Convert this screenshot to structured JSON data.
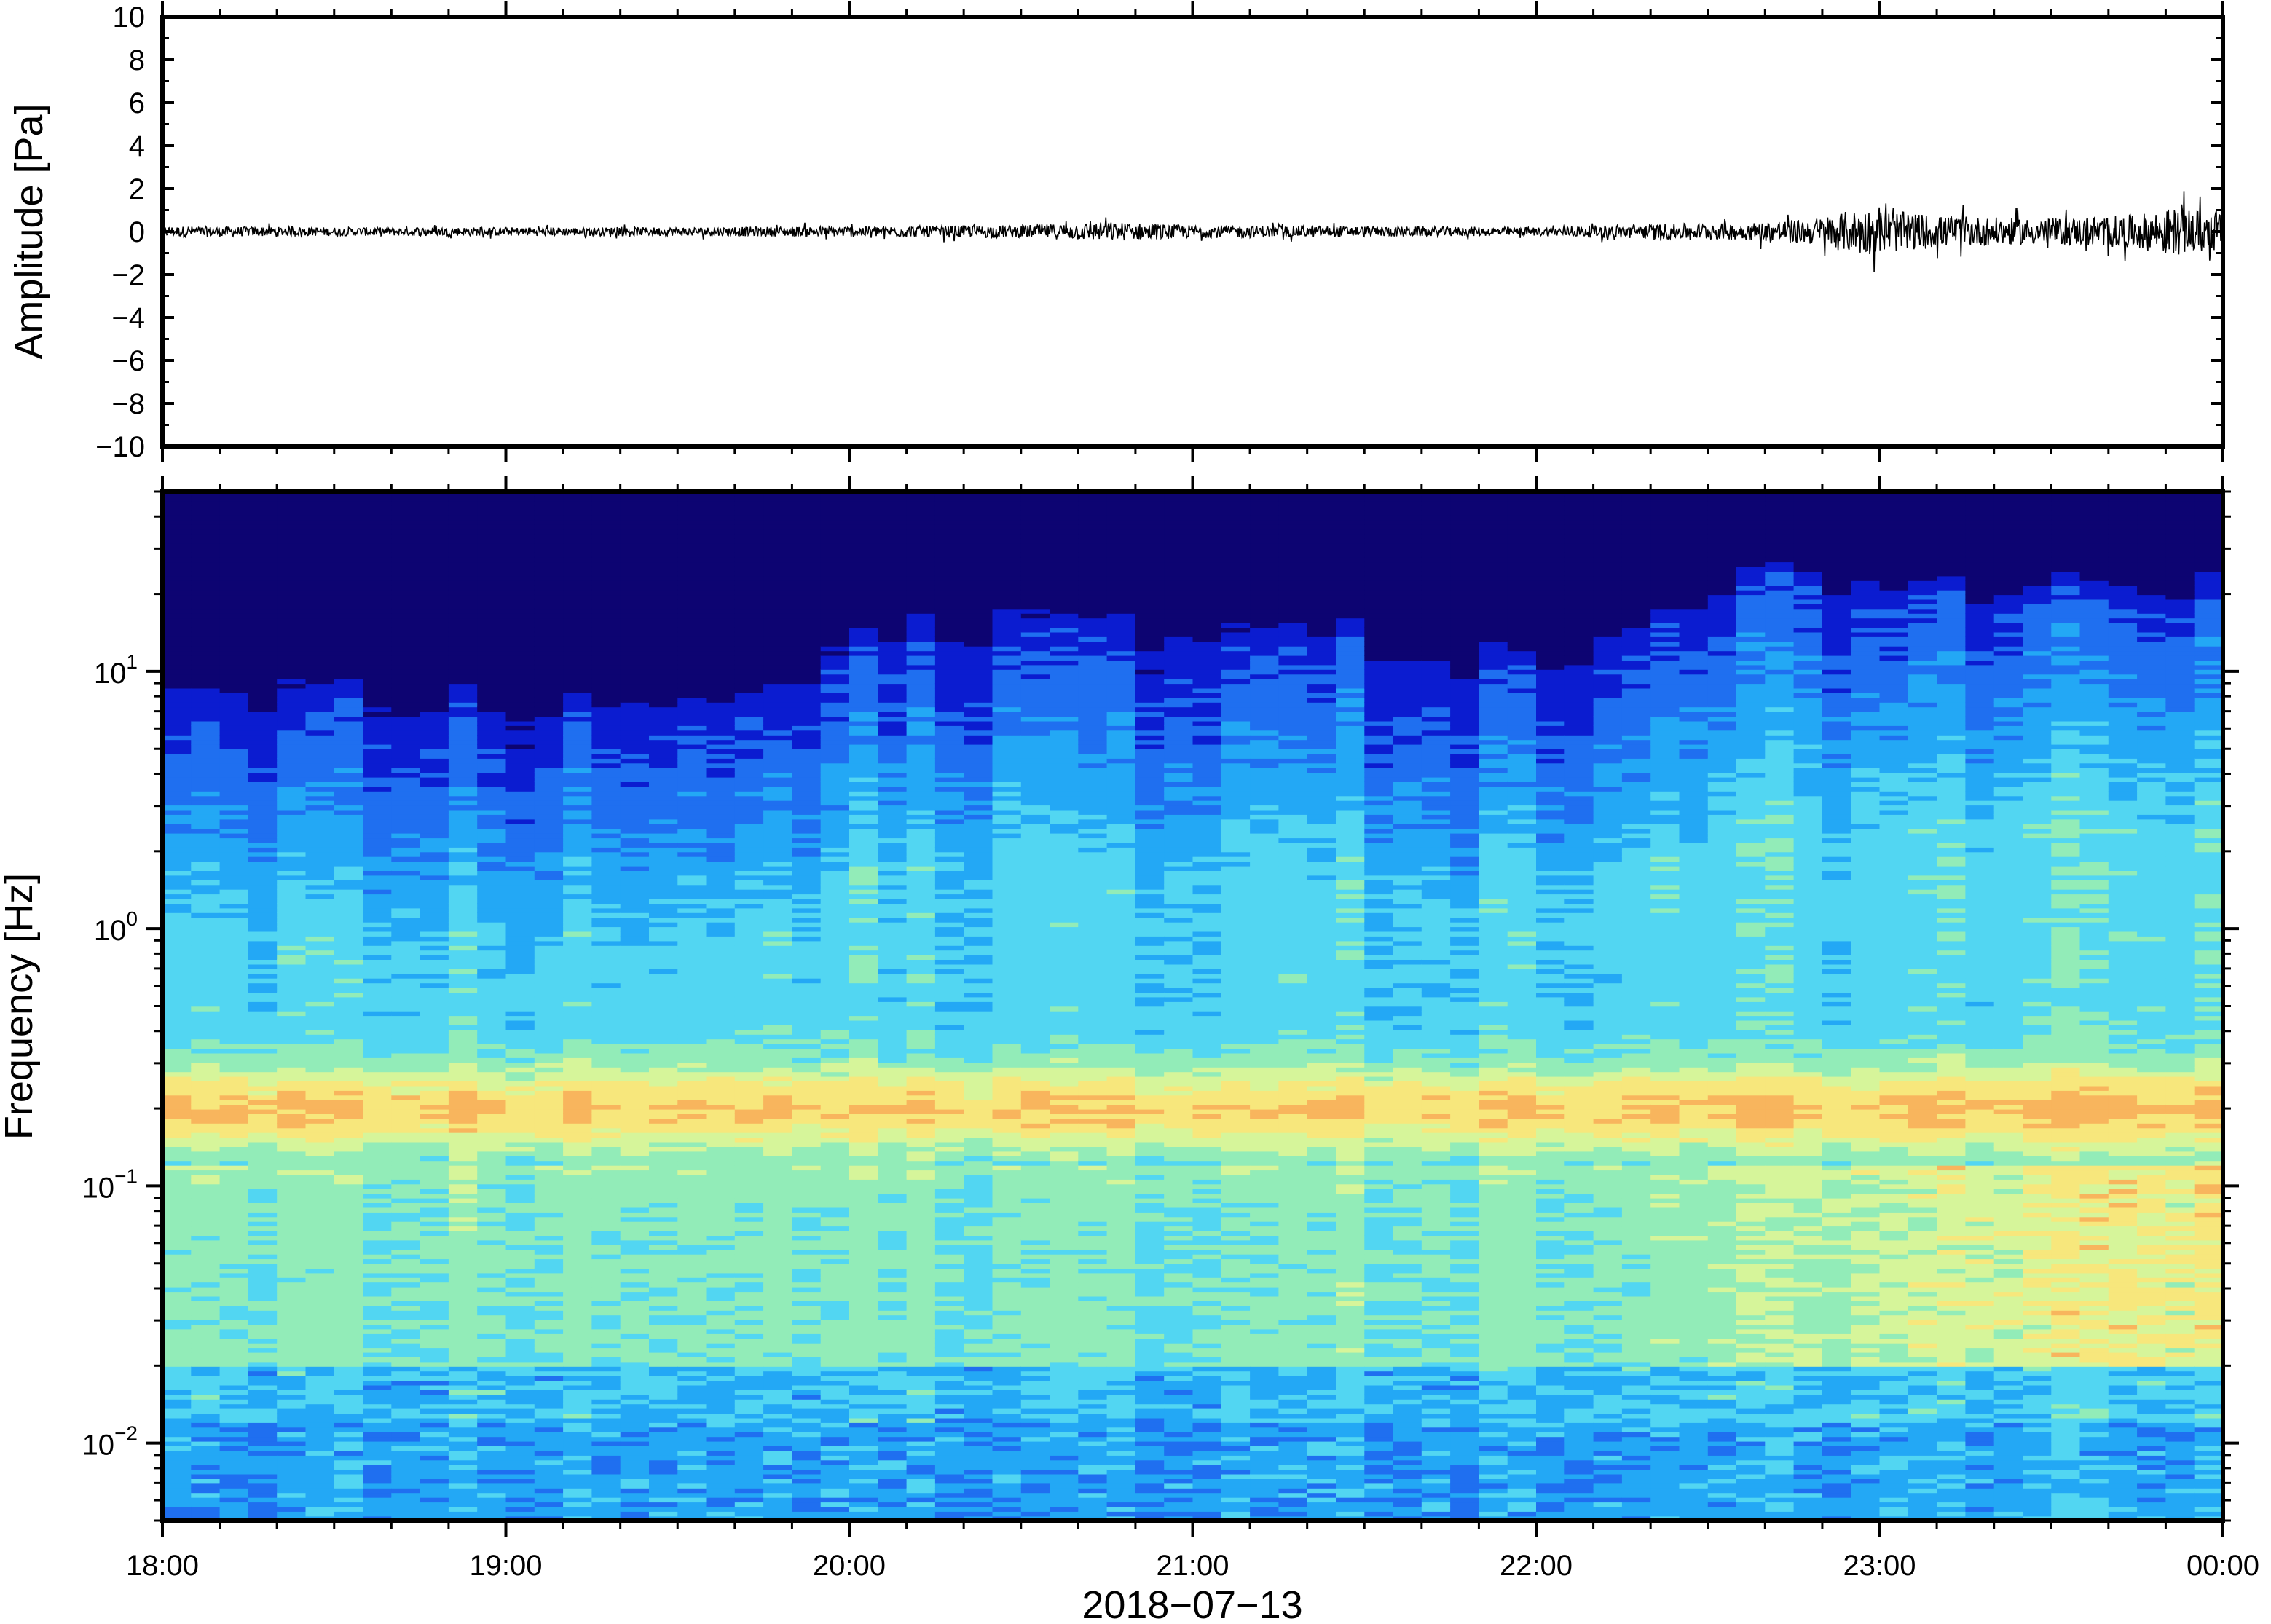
{
  "chart_data": [
    {
      "type": "line",
      "panel": "waveform",
      "ylabel": "Amplitude [Pa]",
      "ylim": [
        -10,
        10
      ],
      "yticks": [
        "10",
        "8",
        "6",
        "4",
        "2",
        "0",
        "−2",
        "−4",
        "−6",
        "−8",
        "−10"
      ],
      "ytick_values": [
        10,
        8,
        6,
        4,
        2,
        0,
        -2,
        -4,
        -6,
        -8,
        -10
      ],
      "x_range_hours": [
        18,
        24
      ],
      "series": [
        {
          "color": "#000000",
          "envelope_time_hours": [
            18.0,
            18.5,
            19.0,
            19.5,
            20.0,
            20.5,
            20.75,
            21.0,
            21.5,
            22.0,
            22.3,
            22.6,
            22.8,
            22.95,
            23.2,
            23.5,
            23.75,
            23.85,
            24.0
          ],
          "envelope_amplitude_pa": [
            0.25,
            0.2,
            0.2,
            0.2,
            0.25,
            0.3,
            0.45,
            0.3,
            0.25,
            0.2,
            0.35,
            0.4,
            0.6,
            1.1,
            0.7,
            0.6,
            0.8,
            1.1,
            0.9
          ]
        }
      ]
    },
    {
      "type": "heatmap",
      "panel": "spectrogram",
      "ylabel": "Frequency [Hz]",
      "xlabel": "2018−07−13",
      "y_scale": "log",
      "ylim_hz": [
        0.005,
        50
      ],
      "yticks": [
        {
          "base": "10",
          "exp": "1",
          "value": 10
        },
        {
          "base": "10",
          "exp": "0",
          "value": 1
        },
        {
          "base": "10",
          "exp": "−1",
          "value": 0.1
        },
        {
          "base": "10",
          "exp": "−2",
          "value": 0.01
        }
      ],
      "xticks": [
        {
          "label": "18:00",
          "hour": 18
        },
        {
          "label": "19:00",
          "hour": 19
        },
        {
          "label": "20:00",
          "hour": 20
        },
        {
          "label": "21:00",
          "hour": 21
        },
        {
          "label": "22:00",
          "hour": 22
        },
        {
          "label": "23:00",
          "hour": 23
        },
        {
          "label": "00:00",
          "hour": 24
        }
      ],
      "colormap": [
        "#0d0472",
        "#0b1cd0",
        "#1f6ff0",
        "#23a8f5",
        "#52d6f2",
        "#92ecb8",
        "#d6f59a",
        "#f7e77c",
        "#f8b55d",
        "#f27d45"
      ],
      "upper_cutoff_hz": {
        "time_hours": [
          18.0,
          18.5,
          19.0,
          19.5,
          19.8,
          20.0,
          20.5,
          21.0,
          21.5,
          22.0,
          22.2,
          22.5,
          22.8,
          23.0,
          23.5,
          24.0
        ],
        "freq_hz": [
          7,
          7,
          6,
          6.5,
          7,
          11,
          14,
          13,
          11,
          9,
          11,
          16,
          22,
          20,
          18,
          22
        ]
      },
      "microseism_peak_hz": 0.2
    }
  ]
}
